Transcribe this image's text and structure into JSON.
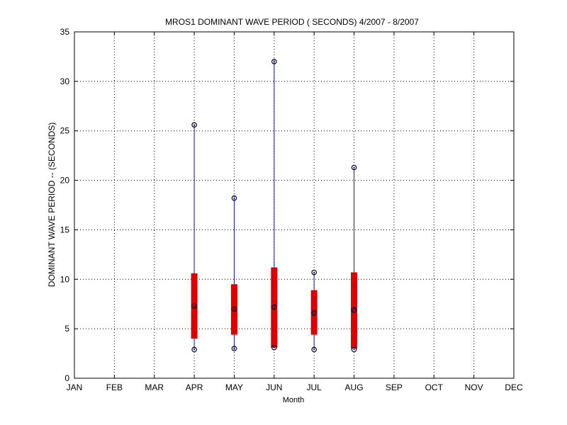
{
  "chart_data": {
    "type": "boxplot",
    "title": "MROS1  DOMINANT WAVE PERIOD ( SECONDS) 4/2007 - 8/2007",
    "xlabel": "Month",
    "ylabel": "DOMINANT WAVE PERIOD -- (SECONDS)",
    "categories": [
      "JAN",
      "FEB",
      "MAR",
      "APR",
      "MAY",
      "JUN",
      "JUL",
      "AUG",
      "SEP",
      "OCT",
      "NOV",
      "DEC"
    ],
    "ylim": [
      0,
      35
    ],
    "yticks": [
      0,
      5,
      10,
      15,
      20,
      25,
      30,
      35
    ],
    "grid": true,
    "colors": {
      "whisker": "#1a1a9c",
      "box": "#dd0000",
      "marker": "#000033"
    },
    "boxes": [
      {
        "category": "APR",
        "min": 2.9,
        "q1": 4.0,
        "median": 7.3,
        "q3": 10.6,
        "max": 25.6
      },
      {
        "category": "MAY",
        "min": 3.0,
        "q1": 4.4,
        "median": 7.0,
        "q3": 9.5,
        "max": 18.2
      },
      {
        "category": "JUN",
        "min": 3.1,
        "q1": 3.1,
        "median": 7.2,
        "q3": 11.2,
        "max": 32.0
      },
      {
        "category": "JUL",
        "min": 2.9,
        "q1": 4.4,
        "median": 6.6,
        "q3": 8.9,
        "max": 10.7
      },
      {
        "category": "AUG",
        "min": 2.9,
        "q1": 3.0,
        "median": 6.9,
        "q3": 10.7,
        "max": 21.3
      }
    ]
  }
}
